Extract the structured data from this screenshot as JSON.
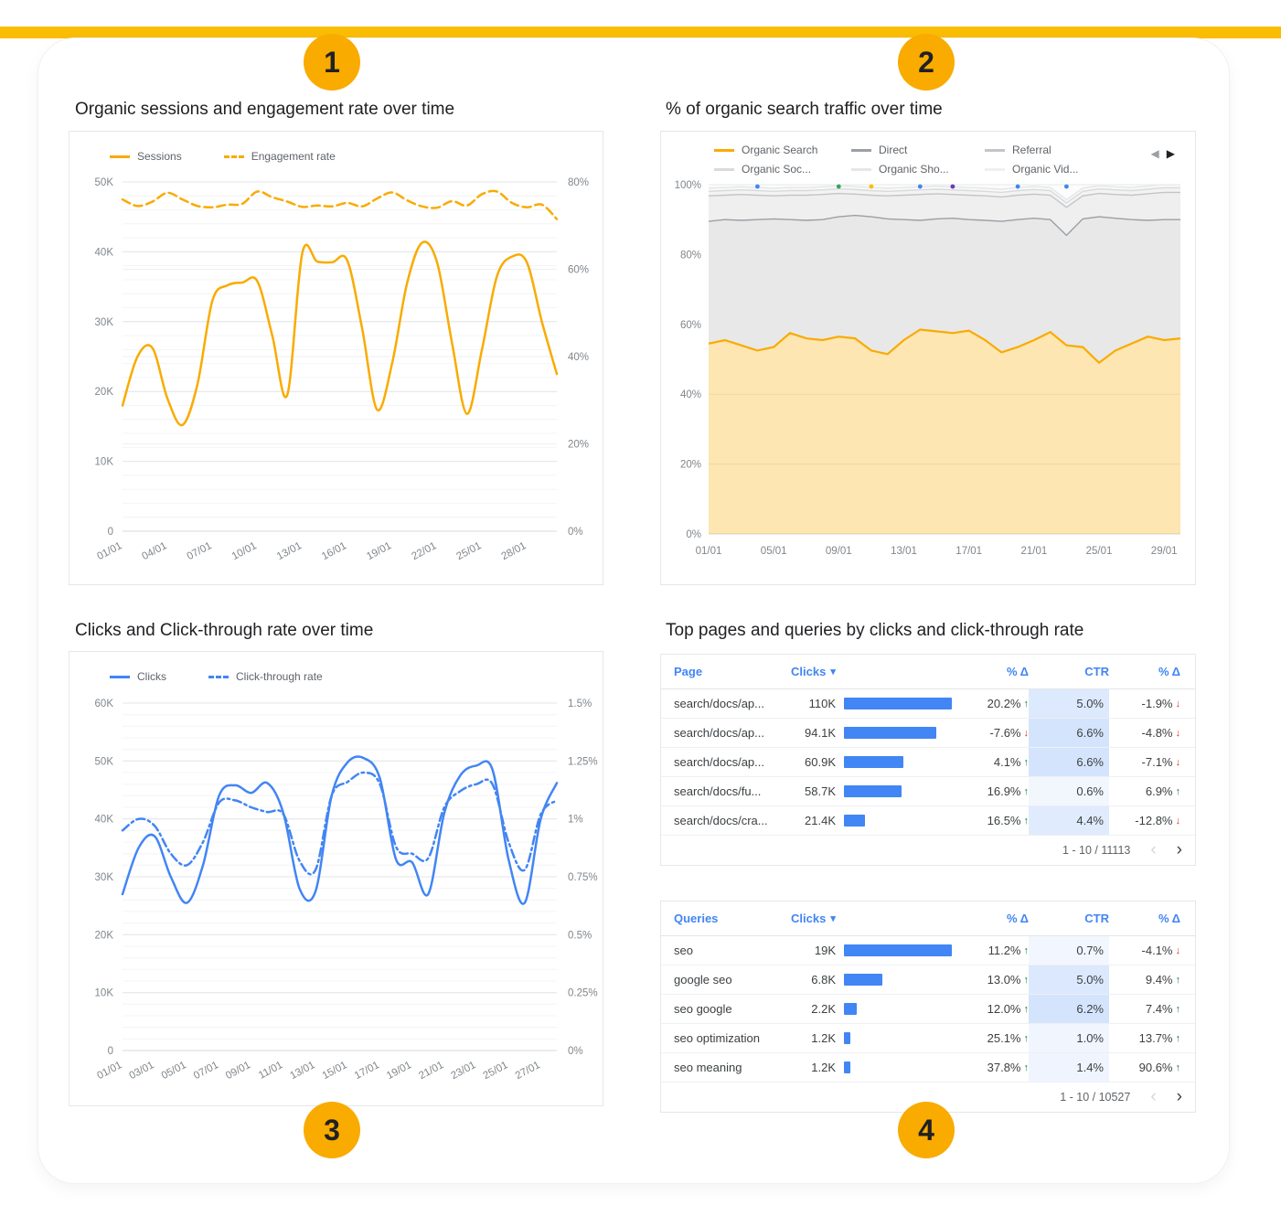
{
  "colors": {
    "accent_bar": "#FBBC04",
    "badge": "#F9AB00",
    "bar_blue": "#4285F4",
    "header_blue": "#4285F4",
    "positive": "#188038",
    "negative": "#D93025",
    "orange": "#F9AB00",
    "blue": "#4285F4"
  },
  "icons": {
    "sort_desc": "▾",
    "prev_page": "‹",
    "next_page": "›",
    "legend_prev": "◀",
    "legend_next": "▶",
    "arrow_up": "↑",
    "arrow_down": "↓"
  },
  "badges": {
    "one": "1",
    "two": "2",
    "three": "3",
    "four": "4"
  },
  "panels": {
    "p1_title": "Organic sessions and engagement rate over time",
    "p2_title": "% of organic search traffic over time",
    "p3_title": "Clicks and Click-through rate over time",
    "p4_title": "Top pages and queries by clicks and click-through rate"
  },
  "chart_data": [
    {
      "id": "organic_sessions_engagement",
      "type": "line",
      "title": "Organic sessions and engagement rate over time",
      "x_tick_labels": [
        "01/01",
        "04/01",
        "07/01",
        "10/01",
        "13/01",
        "16/01",
        "19/01",
        "22/01",
        "25/01",
        "28/01"
      ],
      "left_axis": {
        "min": 0,
        "max": 50,
        "unit": "K sessions",
        "ticks": [
          "0",
          "10K",
          "20K",
          "30K",
          "40K",
          "50K"
        ]
      },
      "right_axis": {
        "min": 0,
        "max": 80,
        "unit": "%",
        "ticks": [
          "0%",
          "20%",
          "40%",
          "60%",
          "80%"
        ]
      },
      "legend_position": "top",
      "grid": true,
      "series": [
        {
          "name": "Sessions",
          "axis": "left",
          "style": "solid",
          "color": "#F9AB00",
          "values": [
            18,
            25,
            26.2,
            19,
            15.2,
            21,
            33,
            35.2,
            35.6,
            35.8,
            28,
            19.5,
            39.8,
            38.6,
            38.5,
            38.8,
            29,
            17.4,
            24,
            35.5,
            41.3,
            38.5,
            27,
            16.8,
            26,
            36.5,
            39.3,
            38.5,
            30,
            22.5
          ]
        },
        {
          "name": "Engagement rate",
          "axis": "right",
          "style": "dashed",
          "color": "#F9AB00",
          "values": [
            76,
            74.5,
            75.5,
            77.5,
            76,
            74.5,
            74.2,
            74.8,
            75,
            77.8,
            76.5,
            75.5,
            74.3,
            74.6,
            74.4,
            75.2,
            74.4,
            76.2,
            77.6,
            75.8,
            74.4,
            74.1,
            75.6,
            74.6,
            77.2,
            77.8,
            75.2,
            74.2,
            74.8,
            71.5
          ]
        }
      ]
    },
    {
      "id": "organic_traffic_share",
      "type": "area",
      "stacked": true,
      "title": "% of organic search traffic over time",
      "x_tick_labels": [
        "01/01",
        "05/01",
        "09/01",
        "13/01",
        "17/01",
        "21/01",
        "25/01",
        "29/01"
      ],
      "y_axis": {
        "min": 0,
        "max": 100,
        "unit": "%",
        "ticks": [
          "0%",
          "20%",
          "40%",
          "60%",
          "80%",
          "100%"
        ]
      },
      "legend_position": "top",
      "series": [
        {
          "name": "Organic Search",
          "color": "#F9AB00",
          "fill": "rgba(249,171,0,0.30)",
          "values": [
            54.5,
            55.5,
            54,
            52.5,
            53.5,
            57.5,
            56,
            55.5,
            56.5,
            56,
            52.5,
            51.5,
            55.5,
            58.5,
            58,
            57.5,
            58.2,
            55.5,
            52,
            53.5,
            55.5,
            57.8,
            54,
            53.5,
            49,
            52.5,
            54.5,
            56.5,
            55.5,
            56
          ]
        },
        {
          "name": "Direct",
          "color": "#9AA0A6",
          "fill": "#e8e8e8",
          "values": [
            35,
            34.5,
            35.8,
            37.5,
            36.7,
            32.5,
            33.8,
            34.5,
            34.3,
            35.2,
            38.3,
            38.7,
            34.5,
            31.3,
            32.2,
            32.9,
            31.8,
            34.3,
            37.5,
            36.5,
            34.9,
            32.2,
            31.5,
            36.7,
            41.8,
            37.9,
            35.5,
            33.3,
            34.5,
            34
          ]
        },
        {
          "name": "Referral",
          "color": "#c2c5c9",
          "fill": "#efefef",
          "values": [
            7.3,
            7,
            7.4,
            7,
            6.6,
            7,
            7.2,
            7.2,
            6.7,
            6.1,
            6.2,
            6.6,
            7,
            7.4,
            7.2,
            6.8,
            7,
            7,
            7,
            7,
            6.9,
            7,
            8,
            6.6,
            6.7,
            6.8,
            7,
            7.6,
            7.8,
            7.8
          ]
        },
        {
          "name": "Organic Soc...",
          "color": "#d8dadd",
          "fill": "#f3f3f3",
          "values": [
            1.3,
            1.3,
            1.3,
            1.3,
            1.3,
            1.3,
            1.3,
            1.3,
            1.3,
            1.3,
            1.3,
            1.3,
            1.3,
            1.3,
            1.3,
            1.3,
            1.3,
            1.3,
            1.3,
            1.3,
            1.3,
            1.3,
            1.3,
            1.3,
            1.3,
            1.3,
            1.3,
            1.3,
            1.3,
            1.3
          ]
        },
        {
          "name": "Organic Sho...",
          "color": "#e4e6e8",
          "fill": "#f8f8f8",
          "values": [
            0.9,
            0.9,
            0.9,
            0.9,
            0.9,
            0.9,
            0.9,
            0.9,
            0.9,
            0.9,
            0.9,
            0.9,
            0.9,
            0.9,
            0.9,
            0.9,
            0.9,
            0.9,
            0.9,
            0.9,
            0.9,
            0.9,
            0.9,
            0.9,
            0.9,
            0.9,
            0.9,
            0.9,
            0.9,
            0.9
          ]
        },
        {
          "name": "Organic Vid...",
          "color": "#eef0f1",
          "fill": "#fcfcfc",
          "values": [
            1,
            0.8,
            0.6,
            0.8,
            1,
            0.8,
            0.8,
            0.6,
            0.3,
            0.5,
            0.8,
            1,
            0.8,
            0.6,
            0.4,
            0.6,
            0.8,
            1,
            1.3,
            0.8,
            0.5,
            0.8,
            4.3,
            1,
            0.3,
            0.6,
            0.8,
            0.4,
            0,
            0
          ]
        }
      ],
      "top_markers": [
        {
          "i": 3,
          "color": "#4285F4"
        },
        {
          "i": 8,
          "color": "#34A853"
        },
        {
          "i": 10,
          "color": "#FBBC04"
        },
        {
          "i": 13,
          "color": "#4285F4"
        },
        {
          "i": 15,
          "color": "#673AB7"
        },
        {
          "i": 19,
          "color": "#4285F4"
        },
        {
          "i": 22,
          "color": "#4285F4"
        }
      ]
    },
    {
      "id": "clicks_ctr",
      "type": "line",
      "title": "Clicks and Click-through rate over time",
      "x_tick_labels": [
        "01/01",
        "03/01",
        "05/01",
        "07/01",
        "09/01",
        "11/01",
        "13/01",
        "15/01",
        "17/01",
        "19/01",
        "21/01",
        "23/01",
        "25/01",
        "27/01"
      ],
      "left_axis": {
        "min": 0,
        "max": 60,
        "unit": "K clicks",
        "ticks": [
          "0",
          "10K",
          "20K",
          "30K",
          "40K",
          "50K",
          "60K"
        ]
      },
      "right_axis": {
        "min": 0,
        "max": 1.5,
        "unit": "%",
        "ticks": [
          "0%",
          "0.25%",
          "0.5%",
          "0.75%",
          "1%",
          "1.25%",
          "1.5%"
        ]
      },
      "legend_position": "top",
      "grid": true,
      "series": [
        {
          "name": "Clicks",
          "axis": "left",
          "style": "solid",
          "color": "#4285F4",
          "values": [
            27,
            35,
            37,
            30,
            25.5,
            32,
            44,
            45.8,
            44.5,
            46.2,
            41,
            28,
            27.5,
            44,
            49.8,
            50.5,
            47,
            33,
            32.5,
            27,
            41,
            47.5,
            49.2,
            48.5,
            33,
            25.5,
            40,
            46.2
          ]
        },
        {
          "name": "Click-through rate",
          "axis": "right",
          "style": "dashdot",
          "color": "#4285F4",
          "values": [
            0.95,
            1,
            0.97,
            0.85,
            0.8,
            0.9,
            1.07,
            1.08,
            1.05,
            1.03,
            1.02,
            0.82,
            0.78,
            1.1,
            1.16,
            1.2,
            1.15,
            0.88,
            0.85,
            0.83,
            1.05,
            1.12,
            1.15,
            1.15,
            0.9,
            0.78,
            1.02,
            1.08
          ]
        }
      ]
    },
    {
      "id": "top_pages",
      "type": "table",
      "columns": [
        "Page",
        "Clicks",
        "% Δ",
        "CTR",
        "% Δ"
      ],
      "sorted_by": "Clicks",
      "sort_direction": "desc",
      "rows": [
        {
          "label": "search/docs/ap...",
          "clicks": "110K",
          "clicks_value": 110000,
          "delta": "20.2%",
          "delta_dir": "up",
          "ctr": "5.0%",
          "ctr_delta": "-1.9%",
          "ctr_delta_dir": "down"
        },
        {
          "label": "search/docs/ap...",
          "clicks": "94.1K",
          "clicks_value": 94100,
          "delta": "-7.6%",
          "delta_dir": "down",
          "ctr": "6.6%",
          "ctr_delta": "-4.8%",
          "ctr_delta_dir": "down"
        },
        {
          "label": "search/docs/ap...",
          "clicks": "60.9K",
          "clicks_value": 60900,
          "delta": "4.1%",
          "delta_dir": "up",
          "ctr": "6.6%",
          "ctr_delta": "-7.1%",
          "ctr_delta_dir": "down"
        },
        {
          "label": "search/docs/fu...",
          "clicks": "58.7K",
          "clicks_value": 58700,
          "delta": "16.9%",
          "delta_dir": "up",
          "ctr": "0.6%",
          "ctr_delta": "6.9%",
          "ctr_delta_dir": "up"
        },
        {
          "label": "search/docs/cra...",
          "clicks": "21.4K",
          "clicks_value": 21400,
          "delta": "16.5%",
          "delta_dir": "up",
          "ctr": "4.4%",
          "ctr_delta": "-12.8%",
          "ctr_delta_dir": "down"
        }
      ],
      "pagination": "1 - 10 / 11113"
    },
    {
      "id": "top_queries",
      "type": "table",
      "columns": [
        "Queries",
        "Clicks",
        "% Δ",
        "CTR",
        "% Δ"
      ],
      "sorted_by": "Clicks",
      "sort_direction": "desc",
      "rows": [
        {
          "label": "seo",
          "clicks": "19K",
          "clicks_value": 19000,
          "delta": "11.2%",
          "delta_dir": "up",
          "ctr": "0.7%",
          "ctr_delta": "-4.1%",
          "ctr_delta_dir": "down"
        },
        {
          "label": "google seo",
          "clicks": "6.8K",
          "clicks_value": 6800,
          "delta": "13.0%",
          "delta_dir": "up",
          "ctr": "5.0%",
          "ctr_delta": "9.4%",
          "ctr_delta_dir": "up"
        },
        {
          "label": "seo google",
          "clicks": "2.2K",
          "clicks_value": 2200,
          "delta": "12.0%",
          "delta_dir": "up",
          "ctr": "6.2%",
          "ctr_delta": "7.4%",
          "ctr_delta_dir": "up"
        },
        {
          "label": "seo optimization",
          "clicks": "1.2K",
          "clicks_value": 1200,
          "delta": "25.1%",
          "delta_dir": "up",
          "ctr": "1.0%",
          "ctr_delta": "13.7%",
          "ctr_delta_dir": "up"
        },
        {
          "label": "seo meaning",
          "clicks": "1.2K",
          "clicks_value": 1200,
          "delta": "37.8%",
          "delta_dir": "up",
          "ctr": "1.4%",
          "ctr_delta": "90.6%",
          "ctr_delta_dir": "up"
        }
      ],
      "pagination": "1 - 10 / 10527"
    }
  ]
}
